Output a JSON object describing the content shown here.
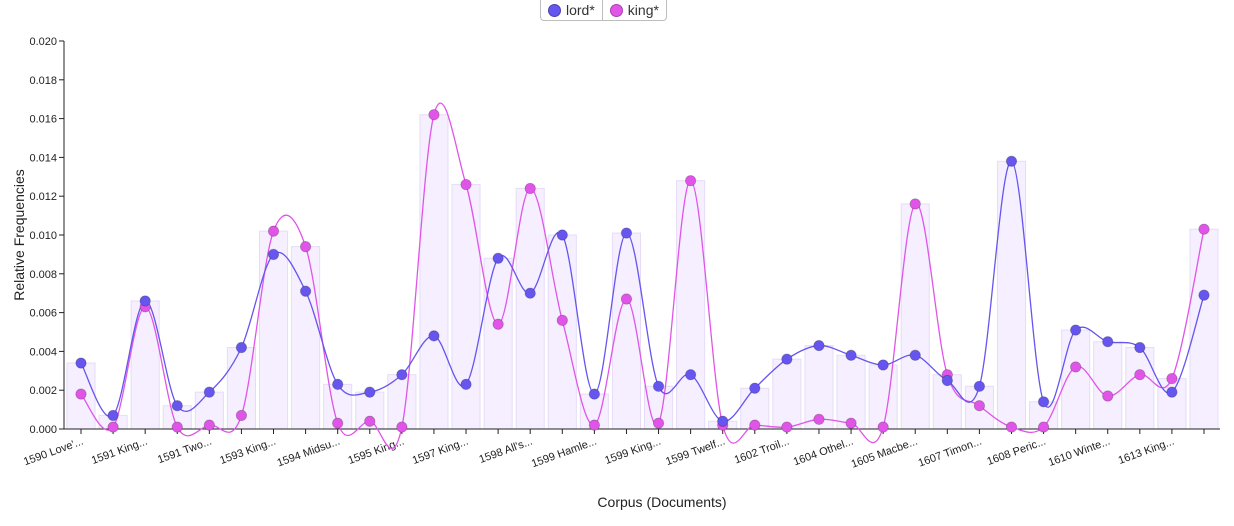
{
  "chart_data": {
    "type": "line",
    "xlabel": "Corpus (Documents)",
    "ylabel": "Relative Frequencies",
    "ylim": [
      0,
      0.02
    ],
    "y_ticks": [
      "0.000",
      "0.002",
      "0.004",
      "0.006",
      "0.008",
      "0.010",
      "0.012",
      "0.014",
      "0.016",
      "0.018",
      "0.020"
    ],
    "x_tick_labels": [
      "1590 Love'...",
      "1591 King...",
      "1591 Two...",
      "1593 King...",
      "1594 Midsu...",
      "1595 King...",
      "1597 King...",
      "1598 All's...",
      "1599 Hamle...",
      "1599 King...",
      "1599 Twelf...",
      "1602 Troil...",
      "1604 Othel...",
      "1605 Macbe...",
      "1607 Timon...",
      "1608 Peric...",
      "1610 Winte...",
      "1613 King..."
    ],
    "series": [
      {
        "name": "lord*",
        "color": "#6655ee",
        "values": [
          0.0034,
          0.0007,
          0.0066,
          0.0012,
          0.0019,
          0.0042,
          0.009,
          0.0071,
          0.0023,
          0.0019,
          0.0028,
          0.0048,
          0.0023,
          0.0088,
          0.007,
          0.01,
          0.0018,
          0.0101,
          0.0022,
          0.0028,
          0.0004,
          0.0021,
          0.0036,
          0.0043,
          0.0038,
          0.0033,
          0.0038,
          0.0025,
          0.0022,
          0.0138,
          0.0014,
          0.0051,
          0.0045,
          0.0042,
          0.0019,
          0.0069
        ]
      },
      {
        "name": "king*",
        "color": "#e055e8",
        "values": [
          0.0018,
          0.0001,
          0.0063,
          0.0001,
          0.0002,
          0.0007,
          0.0102,
          0.0094,
          0.0003,
          0.0004,
          0.0001,
          0.0162,
          0.0126,
          0.0054,
          0.0124,
          0.0056,
          0.0002,
          0.0067,
          0.0003,
          0.0128,
          0.0002,
          0.0002,
          0.0001,
          0.0005,
          0.0003,
          0.0001,
          0.0116,
          0.0028,
          0.0012,
          0.0001,
          0.0001,
          0.0032,
          0.0017,
          0.0028,
          0.0026,
          0.0103
        ]
      }
    ]
  }
}
